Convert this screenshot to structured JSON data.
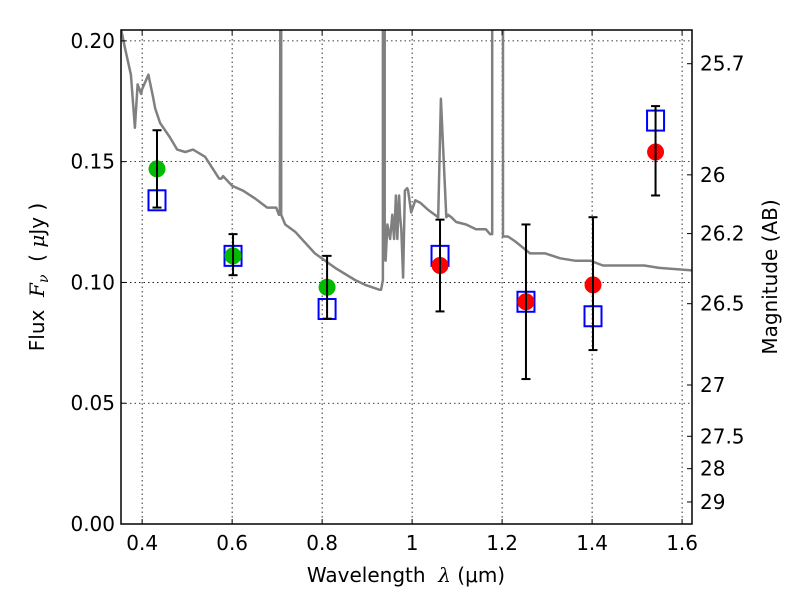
{
  "chart_data": {
    "type": "scatter",
    "title": "",
    "xlabel": "Wavelength  λ (μm)",
    "xlabel_parts": {
      "prefix": "Wavelength  ",
      "symbol": "λ",
      "unit": " (μm)"
    },
    "ylabel": "Flux  Fν  ( μJy )",
    "ylabel_parts": {
      "prefix": "Flux  ",
      "symbol": "F",
      "sub": "ν",
      "unit_open": "  ( ",
      "unit_mu": "μ",
      "unit_rest": "Jy )"
    },
    "y2label": "Magnitude (AB)",
    "xlim": [
      0.353,
      1.622
    ],
    "ylim": [
      0.0,
      0.2045
    ],
    "grid": true,
    "xticks": [
      0.4,
      0.6,
      0.8,
      1.0,
      1.2,
      1.4,
      1.6
    ],
    "xtick_labels": [
      "0.4",
      "0.6",
      "0.8",
      "1",
      "1.2",
      "1.4",
      "1.6"
    ],
    "yticks": [
      0.0,
      0.05,
      0.1,
      0.15,
      0.2
    ],
    "ytick_labels": [
      "0.00",
      "0.05",
      "0.10",
      "0.15",
      "0.20"
    ],
    "y2ticks_mag": [
      25.7,
      26,
      26.2,
      26.5,
      27,
      27.5,
      28,
      29
    ],
    "y2tick_labels": [
      "25.7",
      "26",
      "26.2",
      "26.5",
      "27",
      "27.5",
      "28",
      "29"
    ],
    "y2_conversion": "flux_uJy = 10^((23.9 - mag)/2.5)",
    "series": [
      {
        "name": "model spectrum",
        "kind": "line",
        "color": "#808080",
        "x": [
          0.353,
          0.362,
          0.375,
          0.384,
          0.39,
          0.398,
          0.4,
          0.414,
          0.424,
          0.429,
          0.44,
          0.462,
          0.478,
          0.496,
          0.513,
          0.54,
          0.571,
          0.576,
          0.58,
          0.6,
          0.624,
          0.649,
          0.678,
          0.698,
          0.704,
          0.706,
          0.707,
          0.709,
          0.709,
          0.718,
          0.74,
          0.784,
          0.829,
          0.873,
          0.896,
          0.927,
          0.931,
          0.935,
          0.935,
          0.939,
          0.939,
          0.941,
          0.945,
          0.951,
          0.956,
          0.96,
          0.964,
          0.967,
          0.971,
          0.973,
          0.976,
          0.98,
          0.984,
          0.989,
          0.991,
          0.998,
          1.007,
          1.018,
          1.036,
          1.058,
          1.064,
          1.076,
          1.08,
          1.087,
          1.098,
          1.12,
          1.142,
          1.164,
          1.173,
          1.178,
          1.178,
          1.202,
          1.202,
          1.213,
          1.229,
          1.262,
          1.296,
          1.329,
          1.362,
          1.396,
          1.424,
          1.44,
          1.462,
          1.516,
          1.549,
          1.622
        ],
        "y": [
          0.205,
          0.197,
          0.186,
          0.164,
          0.182,
          0.178,
          0.18,
          0.186,
          0.177,
          0.172,
          0.166,
          0.16,
          0.155,
          0.154,
          0.155,
          0.152,
          0.143,
          0.143,
          0.144,
          0.14,
          0.138,
          0.135,
          0.131,
          0.131,
          0.128,
          0.128,
          0.205,
          0.205,
          0.128,
          0.124,
          0.121,
          0.112,
          0.106,
          0.101,
          0.099,
          0.097,
          0.097,
          0.101,
          0.205,
          0.205,
          0.11,
          0.109,
          0.124,
          0.118,
          0.128,
          0.118,
          0.136,
          0.118,
          0.136,
          0.128,
          0.122,
          0.102,
          0.138,
          0.139,
          0.138,
          0.129,
          0.134,
          0.133,
          0.13,
          0.127,
          0.176,
          0.127,
          0.128,
          0.127,
          0.125,
          0.124,
          0.122,
          0.122,
          0.12,
          0.12,
          0.205,
          0.205,
          0.119,
          0.119,
          0.117,
          0.112,
          0.112,
          0.11,
          0.109,
          0.109,
          0.107,
          0.107,
          0.107,
          0.107,
          0.106,
          0.105
        ]
      },
      {
        "name": "observed (optical)",
        "kind": "circle",
        "color": "#00bb00",
        "x": [
          0.433,
          0.602,
          0.811
        ],
        "y": [
          0.147,
          0.111,
          0.098
        ]
      },
      {
        "name": "observed (near-IR)",
        "kind": "circle",
        "color": "#ff0000",
        "x": [
          1.062,
          1.253,
          1.402,
          1.541
        ],
        "y": [
          0.107,
          0.092,
          0.099,
          0.154
        ]
      },
      {
        "name": "model photometry",
        "kind": "square",
        "color": "#0000ff",
        "x": [
          0.433,
          0.602,
          0.811,
          1.062,
          1.253,
          1.402,
          1.541
        ],
        "y": [
          0.134,
          0.111,
          0.089,
          0.111,
          0.092,
          0.086,
          0.167
        ]
      },
      {
        "name": "error bars",
        "kind": "errorbar",
        "color": "#000000",
        "x": [
          0.433,
          0.602,
          0.811,
          1.062,
          1.253,
          1.402,
          1.541
        ],
        "low": [
          0.131,
          0.103,
          0.085,
          0.088,
          0.06,
          0.072,
          0.136
        ],
        "high": [
          0.163,
          0.12,
          0.111,
          0.126,
          0.124,
          0.127,
          0.173
        ]
      }
    ]
  }
}
